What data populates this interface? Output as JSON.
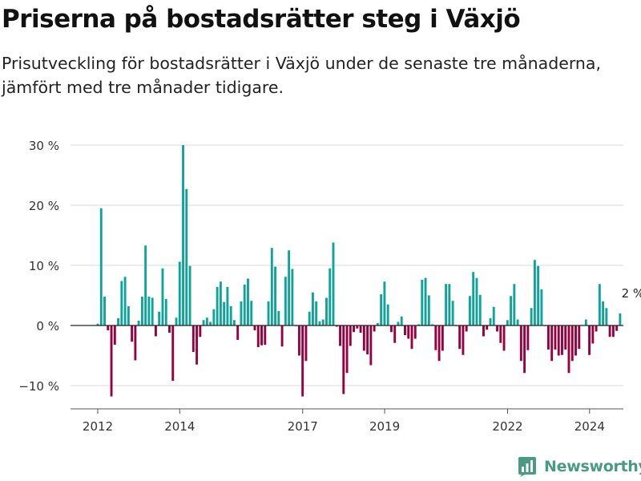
{
  "header": {
    "title": "Priserna på bostadsrätter steg i Växjö",
    "subtitle": "Prisutveckling för bostadsrätter i Växjö under de senaste tre månaderna, jämfört med tre månader tidigare."
  },
  "brand": {
    "name": "Newsworthy",
    "icon": "newsworthy-logo-icon",
    "color": "#4b9a84"
  },
  "colors": {
    "positive": "#0fa39a",
    "negative": "#98003f",
    "grid": "#d9d9d9",
    "zero": "#222222"
  },
  "chart_data": {
    "type": "bar",
    "title": "Priserna på bostadsrätter steg i Växjö",
    "xlabel": "",
    "ylabel": "",
    "ylim": [
      -13.5,
      31
    ],
    "y_ticks": [
      30,
      20,
      10,
      0,
      -10
    ],
    "y_tick_labels": [
      "30 %",
      "20 %",
      "10 %",
      "0 %",
      "−10 %"
    ],
    "x_ticks": [
      2012,
      2014,
      2017,
      2019,
      2022,
      2024
    ],
    "x_tick_labels": [
      "2012",
      "2014",
      "2017",
      "2019",
      "2022",
      "2024"
    ],
    "x_range": [
      2011.6,
      2024.9
    ],
    "grid": true,
    "annotation": {
      "text": "2 %",
      "value": 2
    },
    "series": [
      {
        "x_start": 2012.0,
        "step": 0.0833,
        "values": [
          0.3,
          19.5,
          4.8,
          -0.8,
          -11.8,
          -3.2,
          1.2,
          7.4,
          8.1,
          3.2,
          -2.7,
          -5.8,
          0.8,
          4.8,
          13.3,
          4.8,
          4.6,
          -1.8,
          2.3,
          9.5,
          4.4,
          -1.2,
          -9.2,
          1.3,
          10.6,
          30,
          22.7,
          9.9,
          -4.4,
          -6.5,
          -1.9,
          0.9,
          1.3,
          0.6,
          2.7,
          6.4,
          7.3,
          3.9,
          6.4,
          3.2,
          0.9,
          -2.4,
          4,
          6.8,
          7.8,
          4.1,
          -0.8,
          -3.6,
          -3.3,
          -3.2,
          4,
          12.9,
          9.8,
          2.4,
          -3.5,
          8.1,
          12.5,
          9.4,
          -0.1,
          -5,
          -11.8,
          -5.9,
          2.3,
          5.5,
          4,
          0.7,
          1,
          4.6,
          9.5,
          13.8,
          -0.2,
          -3.4,
          -11.4,
          -7.9,
          -3.4,
          -1.1,
          -0.5,
          -1.2,
          -4.2,
          -4.8,
          -6.6,
          -1,
          0.4,
          5.2,
          7.3,
          3.5,
          -1.1,
          -2.9,
          0.6,
          1.5,
          -1.6,
          -2.2,
          -3.9,
          -2.2,
          0.2,
          7.6,
          7.9,
          5,
          0.2,
          -4.1,
          -5.9,
          -4.2,
          6.9,
          6.9,
          4.1,
          -0.1,
          -3.9,
          -4.9,
          -1,
          4.9,
          8.9,
          7.9,
          5.1,
          -1.8,
          -0.7,
          1.2,
          3.1,
          -1,
          -2.9,
          -4.2,
          0.9,
          4.9,
          6.9,
          1,
          -5.9,
          -7.9,
          -4.1,
          2.9,
          10.9,
          9.9,
          6,
          -0.1,
          -4,
          -5.9,
          -4,
          -5,
          -4.9,
          -4,
          -7.9,
          -5.9,
          -5,
          -3.9,
          0,
          1,
          -4.9,
          -3,
          -1,
          6.9,
          4,
          2.9,
          -1.9,
          -1.9,
          -0.9,
          2
        ]
      }
    ]
  }
}
